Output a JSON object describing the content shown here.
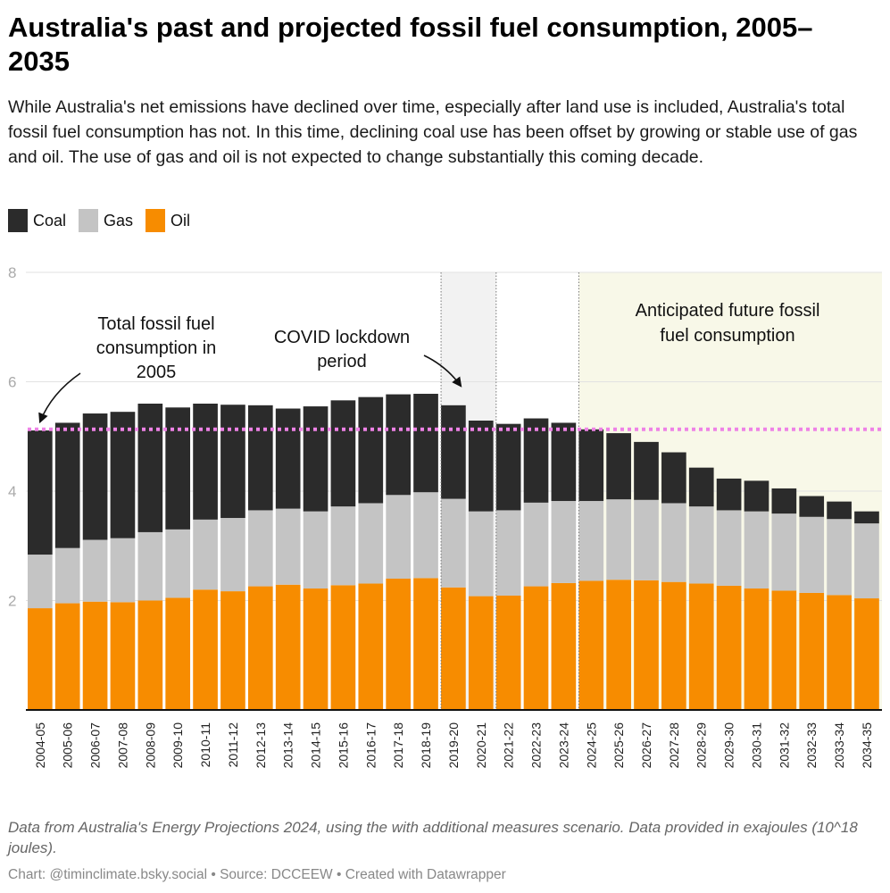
{
  "title": "Australia's past and projected fossil fuel consumption, 2005–2035",
  "subtitle": "While Australia's net emissions have declined over time, especially after land use is included, Australia's total fossil fuel consumption has not. In this time, declining coal use has been offset by growing or stable use of gas and oil. The use of gas and oil is not expected to change substantially this coming decade.",
  "legend": [
    {
      "label": "Coal",
      "color": "#2b2b2b"
    },
    {
      "label": "Gas",
      "color": "#c4c4c4"
    },
    {
      "label": "Oil",
      "color": "#f78c00"
    }
  ],
  "notes": "Data from Australia's Energy Projections 2024, using the with additional measures scenario. Data provided in exajoules (10^18 joules).",
  "credit": "Chart: @timinclimate.bsky.social • Source: DCCEEW • Created with Datawrapper",
  "chart_data": {
    "type": "bar",
    "stacked": true,
    "categories": [
      "2004-05",
      "2005-06",
      "2006-07",
      "2007-08",
      "2008-09",
      "2009-10",
      "2010-11",
      "2011-12",
      "2012-13",
      "2013-14",
      "2014-15",
      "2015-16",
      "2016-17",
      "2017-18",
      "2018-19",
      "2019-20",
      "2020-21",
      "2021-22",
      "2022-23",
      "2023-24",
      "2024-25",
      "2025-26",
      "2026-27",
      "2027-28",
      "2028-29",
      "2029-30",
      "2030-31",
      "2031-32",
      "2032-33",
      "2033-34",
      "2034-35"
    ],
    "series": [
      {
        "name": "Oil",
        "color": "#f78c00",
        "values": [
          1.86,
          1.95,
          1.98,
          1.97,
          2.0,
          2.05,
          2.2,
          2.17,
          2.26,
          2.29,
          2.22,
          2.28,
          2.31,
          2.4,
          2.41,
          2.24,
          2.08,
          2.09,
          2.26,
          2.32,
          2.36,
          2.38,
          2.37,
          2.34,
          2.31,
          2.27,
          2.22,
          2.18,
          2.14,
          2.1,
          2.04
        ]
      },
      {
        "name": "Gas",
        "color": "#c4c4c4",
        "values": [
          0.98,
          1.01,
          1.13,
          1.17,
          1.25,
          1.25,
          1.28,
          1.34,
          1.39,
          1.39,
          1.41,
          1.44,
          1.47,
          1.53,
          1.57,
          1.62,
          1.55,
          1.56,
          1.53,
          1.5,
          1.46,
          1.47,
          1.47,
          1.44,
          1.41,
          1.38,
          1.41,
          1.41,
          1.39,
          1.39,
          1.37
        ]
      },
      {
        "name": "Coal",
        "color": "#2b2b2b",
        "values": [
          2.27,
          2.29,
          2.31,
          2.31,
          2.35,
          2.23,
          2.12,
          2.07,
          1.92,
          1.83,
          1.92,
          1.94,
          1.94,
          1.84,
          1.8,
          1.71,
          1.66,
          1.58,
          1.54,
          1.43,
          1.31,
          1.21,
          1.06,
          0.93,
          0.71,
          0.58,
          0.56,
          0.46,
          0.38,
          0.32,
          0.22
        ]
      }
    ],
    "ylim": [
      0,
      8
    ],
    "yticks": [
      "2",
      "4",
      "6",
      "8"
    ],
    "grid": true,
    "legend_position": "top-left",
    "reference_line": {
      "value": 5.13,
      "color": "#ee82e6",
      "style": "dotted"
    },
    "ranges": [
      {
        "from": "2019-20",
        "to": "2020-21",
        "color": "#f2f2f2"
      },
      {
        "from": "2024-25",
        "to": "2034-35",
        "color": "#f8f8e8"
      }
    ],
    "annotations": {
      "baseline": [
        "Total fossil fuel",
        "consumption in",
        "2005"
      ],
      "covid": [
        "COVID lockdown",
        "period"
      ],
      "future": [
        "Anticipated future fossil",
        "fuel consumption"
      ]
    }
  }
}
